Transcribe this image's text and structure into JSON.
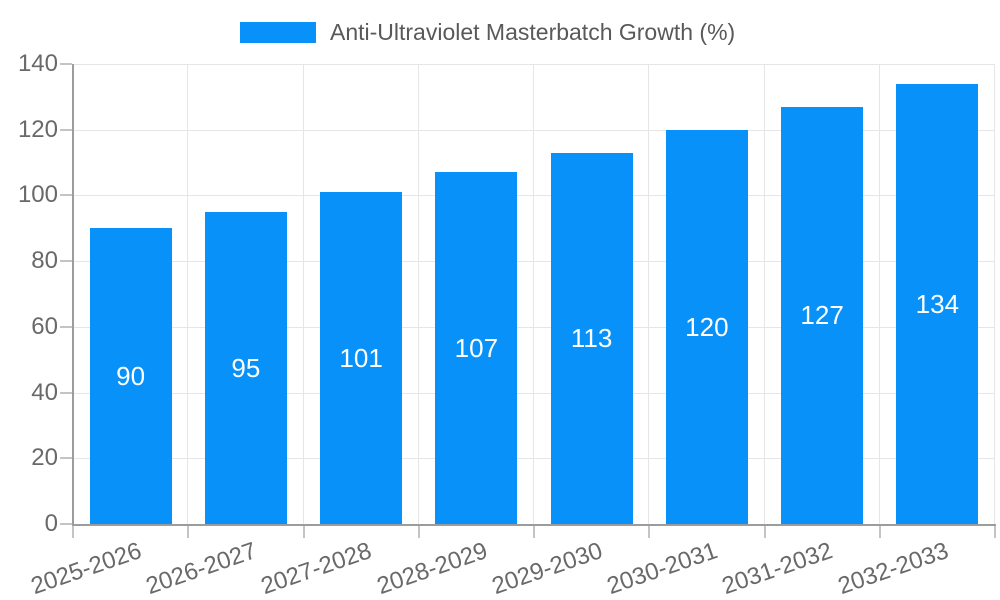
{
  "legend": {
    "series_label": "Anti-Ultraviolet Masterbatch Growth (%)"
  },
  "colors": {
    "bar": "#0791f9",
    "grid": "#e6e6e6",
    "tick_mark": "#c4c4c4",
    "axis_line": "#9c9c9c",
    "axis_text": "#696969",
    "legend_text": "#595959",
    "value_text": "#ffffff",
    "background": "#ffffff"
  },
  "chart_data": {
    "type": "bar",
    "title": "Anti-Ultraviolet Masterbatch Growth (%)",
    "categories": [
      "2025-2026",
      "2026-2027",
      "2027-2028",
      "2028-2029",
      "2029-2030",
      "2030-2031",
      "2031-2032",
      "2032-2033"
    ],
    "values": [
      90,
      95,
      101,
      107,
      113,
      120,
      127,
      134
    ],
    "xlabel": "",
    "ylabel": "",
    "ylim": [
      0,
      140
    ],
    "yticks": [
      0,
      20,
      40,
      60,
      80,
      100,
      120,
      140
    ],
    "grid": true,
    "legend_position": "top-center",
    "x_label_rotation_deg": -19,
    "value_label_position": "inside-center"
  }
}
